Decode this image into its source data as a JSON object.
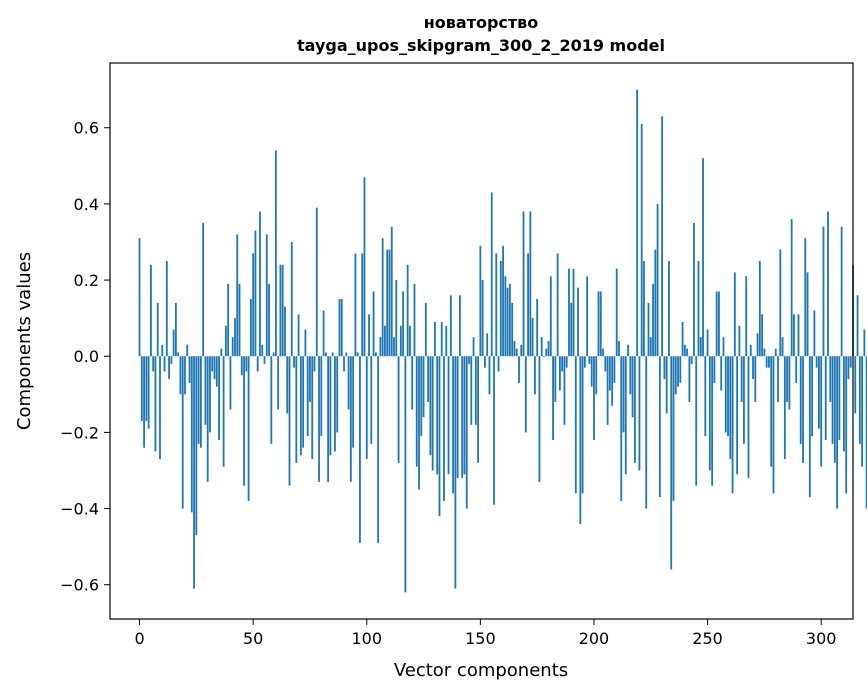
{
  "chart_data": {
    "type": "bar",
    "title": "новаторство",
    "subtitle": "tayga_upos_skipgram_300_2_2019 model",
    "xlabel": "Vector components",
    "ylabel": "Components values",
    "xlim": [
      -13,
      314
    ],
    "ylim": [
      -0.69,
      0.77
    ],
    "x_ticks": [
      0,
      50,
      100,
      150,
      200,
      250,
      300
    ],
    "x_tick_labels": [
      "0",
      "50",
      "100",
      "150",
      "200",
      "250",
      "300"
    ],
    "y_ticks": [
      -0.6,
      -0.4,
      -0.2,
      0.0,
      0.2,
      0.4,
      0.6
    ],
    "y_tick_labels": [
      "−0.6",
      "−0.4",
      "−0.2",
      "0.0",
      "0.2",
      "0.4",
      "0.6"
    ],
    "grid": false,
    "bar_color": "#1f77b4",
    "series": [
      {
        "values": [
          0.31,
          -0.17,
          -0.24,
          -0.17,
          -0.19,
          0.24,
          -0.04,
          -0.25,
          0.14,
          -0.27,
          0.03,
          -0.04,
          0.25,
          -0.06,
          -0.02,
          0.07,
          0.14,
          0.01,
          -0.1,
          -0.4,
          -0.1,
          0.03,
          -0.07,
          -0.41,
          -0.61,
          -0.47,
          -0.23,
          -0.24,
          0.35,
          -0.18,
          -0.33,
          -0.2,
          -0.04,
          -0.06,
          -0.08,
          -0.22,
          0.02,
          -0.29,
          0.08,
          0.19,
          -0.14,
          0.05,
          0.1,
          0.32,
          0.19,
          -0.05,
          -0.34,
          -0.04,
          -0.38,
          0.15,
          0.27,
          0.33,
          -0.04,
          0.38,
          0.03,
          -0.02,
          0.32,
          0.19,
          -0.23,
          0.01,
          0.54,
          -0.14,
          0.24,
          0.24,
          0.13,
          -0.15,
          -0.34,
          0.3,
          -0.03,
          -0.28,
          0.11,
          -0.26,
          -0.24,
          0.07,
          -0.21,
          -0.12,
          -0.27,
          -0.04,
          0.39,
          -0.33,
          -0.21,
          0.12,
          0.01,
          -0.33,
          -0.26,
          0.01,
          -0.25,
          -0.2,
          0.15,
          0.15,
          -0.04,
          0.01,
          -0.14,
          -0.33,
          -0.24,
          0.27,
          0.01,
          -0.49,
          0.27,
          0.47,
          -0.27,
          0.11,
          -0.23,
          0.17,
          0.01,
          -0.49,
          0.05,
          0.31,
          0.08,
          0.28,
          0.28,
          0.34,
          0.05,
          0.2,
          -0.28,
          0.08,
          0.17,
          -0.62,
          0.24,
          0.08,
          -0.14,
          0.19,
          -0.29,
          -0.35,
          -0.21,
          -0.16,
          0.14,
          -0.12,
          -0.26,
          -0.3,
          0.09,
          -0.31,
          -0.42,
          0.09,
          -0.38,
          0.08,
          -0.31,
          0.16,
          -0.36,
          -0.61,
          -0.32,
          0.16,
          -0.32,
          -0.31,
          -0.4,
          -0.02,
          -0.18,
          0.05,
          -0.18,
          -0.28,
          0.29,
          0.2,
          -0.03,
          0.06,
          -0.1,
          0.43,
          -0.39,
          0.27,
          -0.04,
          0.25,
          0.29,
          0.21,
          0.18,
          0.19,
          0.14,
          0.04,
          0.02,
          -0.07,
          0.03,
          0.38,
          -0.2,
          0.27,
          0.38,
          0.1,
          -0.1,
          0.15,
          -0.33,
          0.05,
          0.0,
          0.02,
          0.04,
          0.21,
          -0.22,
          -0.12,
          0.27,
          -0.09,
          -0.04,
          -0.18,
          -0.03,
          0.23,
          0.14,
          0.23,
          -0.36,
          0.18,
          -0.44,
          -0.36,
          -0.03,
          0.21,
          -0.02,
          -0.08,
          -0.22,
          -0.1,
          0.17,
          0.17,
          0.02,
          -0.04,
          -0.18,
          -0.09,
          -0.13,
          -0.07,
          0.23,
          0.04,
          -0.38,
          -0.2,
          -0.31,
          0.03,
          -0.1,
          -0.16,
          -0.28,
          0.7,
          -0.3,
          0.61,
          0.25,
          -0.4,
          0.14,
          0.05,
          0.19,
          0.28,
          0.4,
          -0.37,
          0.63,
          -0.06,
          -0.15,
          0.25,
          -0.56,
          -0.38,
          -0.1,
          -0.08,
          -0.07,
          0.09,
          0.03,
          0.02,
          -0.12,
          -0.02,
          0.35,
          -0.34,
          0.25,
          0.05,
          0.52,
          -0.21,
          0.07,
          -0.3,
          -0.34,
          -0.07,
          0.17,
          0.17,
          -0.09,
          0.05,
          -0.2,
          -0.21,
          -0.27,
          -0.36,
          0.22,
          -0.31,
          0.08,
          -0.12,
          -0.23,
          0.21,
          -0.32,
          0.03,
          -0.06,
          -0.12,
          0.06,
          0.25,
          0.11,
          0.02,
          -0.03,
          -0.03,
          -0.29,
          -0.36,
          0.02,
          -0.12,
          0.28,
          0.05,
          -0.27,
          -0.12,
          -0.14,
          0.36,
          0.11,
          -0.07,
          0.11,
          -0.23,
          -0.28,
          0.31,
          0.22,
          -0.37,
          -0.21,
          0.12,
          -0.03,
          -0.19,
          -0.29,
          0.34,
          -0.22,
          0.38,
          -0.12,
          -0.23,
          -0.28,
          -0.4,
          -0.22,
          0.34,
          -0.25,
          -0.36,
          -0.06,
          -0.03,
          0.24,
          -0.15,
          0.16,
          -0.23,
          -0.29,
          0.07,
          -0.4
        ]
      }
    ]
  }
}
